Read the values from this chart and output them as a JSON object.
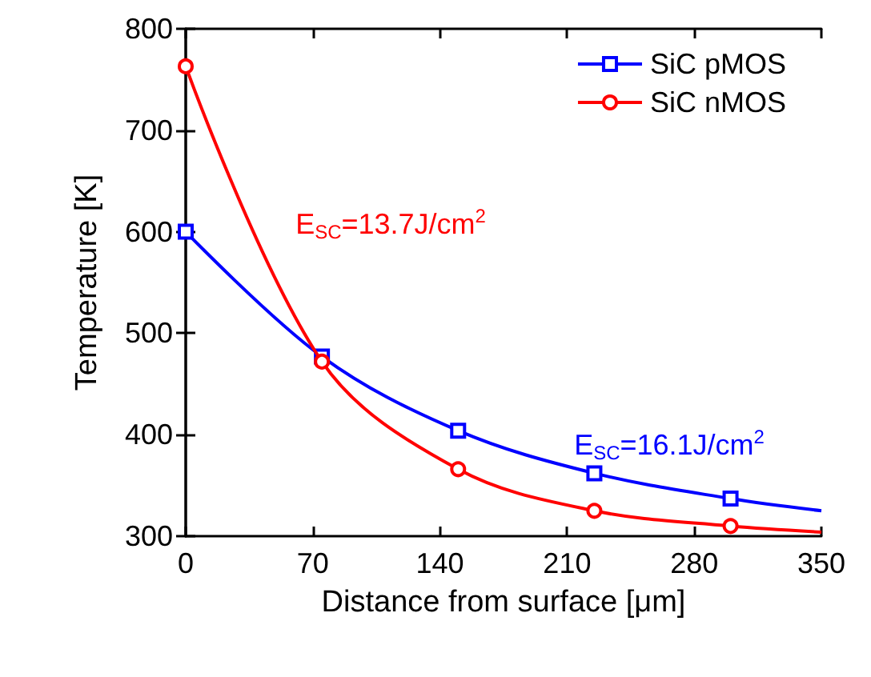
{
  "chart_data": {
    "type": "line",
    "xlabel": "Distance from surface [μm]",
    "ylabel": "Temperature [K]",
    "xlim": [
      0,
      350
    ],
    "xticks": [
      0,
      70,
      140,
      210,
      280,
      350
    ],
    "ylim": [
      300,
      800
    ],
    "yticks": [
      300,
      400,
      500,
      600,
      700,
      800
    ],
    "grid": false,
    "legend": "top right",
    "line_style": "solid",
    "series": [
      {
        "name": "SiC pMOS",
        "color": "#0000ff",
        "marker": "square",
        "x": [
          0,
          75,
          150,
          225,
          300,
          350
        ],
        "values": [
          600,
          477,
          404,
          362,
          337,
          325
        ]
      },
      {
        "name": "SiC nMOS",
        "color": "#ff0000",
        "marker": "circle",
        "x": [
          0,
          75,
          150,
          225,
          300,
          350
        ],
        "values": [
          763,
          472,
          366,
          325,
          310,
          304
        ]
      }
    ],
    "annotations": [
      "E$_{SC}$=16.1J/cm$^{2}$",
      "E$_{SC}$=13.7J/cm$^{2}$"
    ]
  }
}
